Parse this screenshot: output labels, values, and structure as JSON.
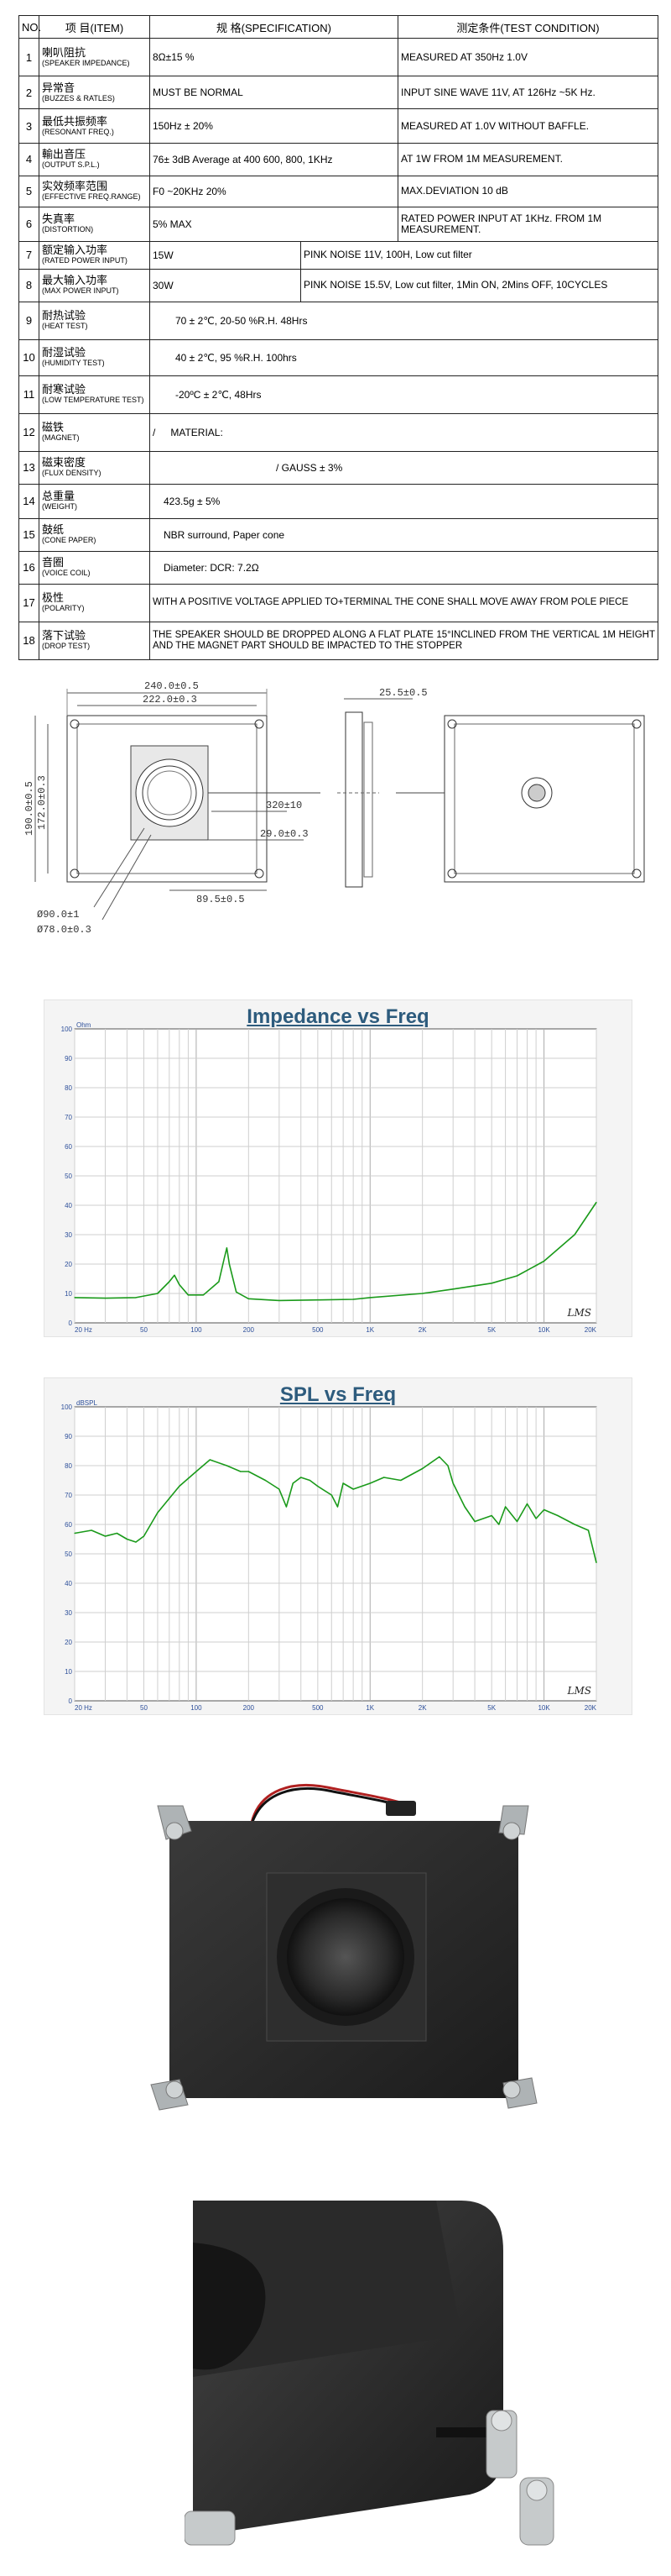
{
  "table": {
    "headers": {
      "no": "NO.",
      "item": "项 目(ITEM)",
      "spec": "规 格(SPECIFICATION)",
      "cond": "测定条件(TEST CONDITION)"
    },
    "rows": [
      {
        "no": "1",
        "cn": "喇叭阻抗",
        "en": "(SPEAKER IMPEDANCE)",
        "spec": "8Ω±15 %",
        "cond": "MEASURED AT      350Hz 1.0V"
      },
      {
        "no": "2",
        "cn": "异常音",
        "en": "(BUZZES & RATLES)",
        "spec": "MUST BE NORMAL",
        "cond": "INPUT SINE WAVE 11V, AT 126Hz ~5K Hz."
      },
      {
        "no": "3",
        "cn": "最低共振频率",
        "en": "(RESONANT FREQ.)",
        "spec": "150Hz ± 20%",
        "cond": "MEASURED AT 1.0V WITHOUT BAFFLE."
      },
      {
        "no": "4",
        "cn": "輸出音压",
        "en": "(OUTPUT S.P.L.)",
        "spec": "76± 3dB Average at 400 600, 800, 1KHz",
        "cond": "AT 1W FROM 1M MEASUREMENT."
      },
      {
        "no": "5",
        "cn": "实效频率范围",
        "en": "(EFFECTIVE FREQ.RANGE)",
        "spec": "F0 ~20KHz 20%",
        "cond": "MAX.DEVIATION 10 dB"
      },
      {
        "no": "6",
        "cn": "失真率",
        "en": "(DISTORTION)",
        "spec": "5% MAX",
        "cond": "RATED POWER INPUT AT 1KHz. FROM 1M MEASUREMENT."
      },
      {
        "no": "7",
        "cn": "额定输入功率",
        "en": "(RATED POWER INPUT)",
        "spec": "15W",
        "cond": "PINK NOISE 11V, 100H, Low cut filter"
      },
      {
        "no": "8",
        "cn": "最大输入功率",
        "en": "(MAX POWER INPUT)",
        "spec": "30W",
        "cond": "PINK NOISE 15.5V, Low cut filter, 1Min ON, 2Mins OFF, 10CYCLES"
      },
      {
        "no": "9",
        "cn": "耐热试验",
        "en": "(HEAT TEST)",
        "spec": "70 ± 2℃, 20-50 %R.H. 48Hrs"
      },
      {
        "no": "10",
        "cn": "耐湿试验",
        "en": "(HUMIDITY TEST)",
        "spec": "40 ± 2℃, 95 %R.H. 100hrs"
      },
      {
        "no": "11",
        "cn": "耐寒试验",
        "en": "(LOW TEMPERATURE TEST)",
        "spec": "-20ºC ± 2℃,  48Hrs"
      },
      {
        "no": "12",
        "cn": "磁铁",
        "en": "(MAGNET)",
        "slash": "/",
        "spec": "MATERIAL:"
      },
      {
        "no": "13",
        "cn": "磁束密度",
        "en": "(FLUX DENSITY)",
        "spec": "/ GAUSS ± 3%"
      },
      {
        "no": "14",
        "cn": "总重量",
        "en": "(WEIGHT)",
        "spec": "423.5g ± 5%"
      },
      {
        "no": "15",
        "cn": "鼓纸",
        "en": "(CONE PAPER)",
        "spec": "NBR surround, Paper cone"
      },
      {
        "no": "16",
        "cn": "音圈",
        "en": "(VOICE COIL)",
        "spec": "Diameter: DCR: 7.2Ω"
      },
      {
        "no": "17",
        "cn": "极性",
        "en": "(POLARITY)",
        "spec": "WITH A POSITIVE VOLTAGE APPLIED TO+TERMINAL THE CONE SHALL MOVE AWAY FROM POLE PIECE"
      },
      {
        "no": "18",
        "cn": "落下试验",
        "en": "(DROP TEST)",
        "spec": "THE SPEAKER SHOULD BE DROPPED ALONG A FLAT PLATE 15°INCLINED FROM THE VERTICAL 1M HEIGHT AND THE MAGNET PART SHOULD BE IMPACTED TO THE STOPPER"
      }
    ]
  },
  "drawing": {
    "dims": {
      "outer_width": "240.0±0.5",
      "inner_width": "222.0±0.3",
      "height_outer": "190.0±0.5",
      "height_inner": "172.0±0.3",
      "depth": "25.5±0.5",
      "lead": "320±10",
      "offset": "29.0±0.3",
      "bottom": "89.5±0.5",
      "dia1": "Ø90.0±1",
      "dia2": "Ø78.0±0.3"
    }
  },
  "chart_data": [
    {
      "type": "line",
      "title": "Impedance vs Freq",
      "ylabel": "Ohm",
      "x_scale": "log",
      "xlim": [
        20,
        20000
      ],
      "ylim": [
        0,
        100
      ],
      "ytick_labels": [
        "100",
        "90",
        "80",
        "70",
        "60",
        "50",
        "40",
        "30",
        "20",
        "10",
        "0"
      ],
      "xtick_labels": [
        "20 Hz",
        "50",
        "100",
        "200",
        "500",
        "1K",
        "2K",
        "5K",
        "10K",
        "20K"
      ],
      "watermark": "LMS",
      "color": "#1a9a1a",
      "series": [
        {
          "x": [
            20,
            30,
            45,
            60,
            70,
            75,
            80,
            90,
            110,
            135,
            145,
            150,
            155,
            170,
            200,
            300,
            500,
            800,
            1000,
            2000,
            3000,
            5000,
            7000,
            10000,
            15000,
            20000
          ],
          "y": [
            8.6,
            8.4,
            8.6,
            10,
            14,
            16.2,
            13,
            9.5,
            9.5,
            14,
            22,
            25.5,
            20,
            10.5,
            8.2,
            7.6,
            7.8,
            8,
            8.6,
            10,
            11.5,
            13.5,
            16,
            21,
            30,
            41
          ]
        }
      ]
    },
    {
      "type": "line",
      "title": "SPL vs Freq",
      "ylabel": "dBSPL",
      "x_scale": "log",
      "xlim": [
        20,
        20000
      ],
      "ylim": [
        0,
        100
      ],
      "ytick_labels": [
        "100",
        "90",
        "80",
        "70",
        "60",
        "50",
        "40",
        "30",
        "20",
        "10",
        "0"
      ],
      "xtick_labels": [
        "20 Hz",
        "50",
        "100",
        "200",
        "500",
        "1K",
        "2K",
        "5K",
        "10K",
        "20K"
      ],
      "watermark": "LMS",
      "color": "#1a9a1a",
      "series": [
        {
          "x": [
            20,
            25,
            30,
            35,
            40,
            45,
            50,
            60,
            80,
            100,
            120,
            150,
            180,
            200,
            250,
            300,
            330,
            360,
            400,
            450,
            500,
            600,
            650,
            700,
            800,
            1000,
            1200,
            1500,
            2000,
            2500,
            2800,
            3000,
            3500,
            4000,
            5000,
            5500,
            6000,
            7000,
            8000,
            9000,
            10000,
            12000,
            15000,
            18000,
            20000
          ],
          "y": [
            57,
            58,
            56,
            57,
            55,
            54,
            56,
            64,
            73,
            78,
            82,
            80,
            78,
            78,
            75,
            72,
            66,
            74,
            76,
            75,
            73,
            70,
            66,
            74,
            72,
            74,
            76,
            75,
            79,
            83,
            80,
            74,
            66,
            61,
            63,
            60,
            66,
            61,
            67,
            62,
            65,
            63,
            60,
            58,
            47
          ]
        }
      ]
    }
  ]
}
